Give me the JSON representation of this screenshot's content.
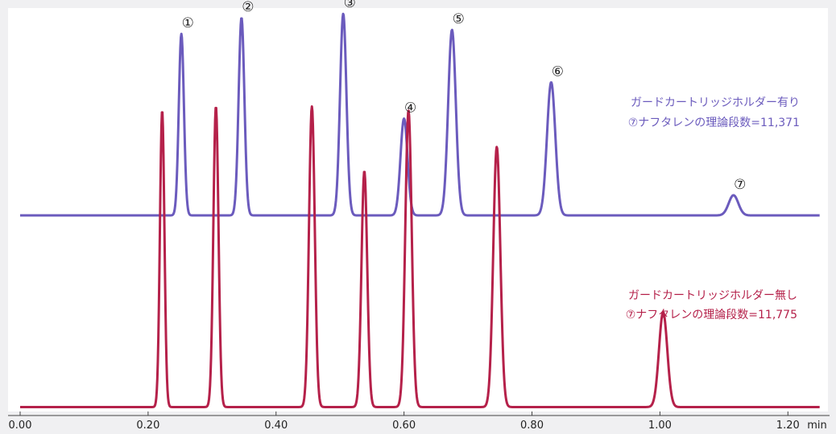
{
  "chart_data": {
    "type": "line",
    "title": "",
    "xlabel": "",
    "ylabel": "",
    "xlim": [
      0.0,
      1.25
    ],
    "ylim": [
      0,
      100
    ],
    "x_ticks": [
      0.0,
      0.2,
      0.4,
      0.6,
      0.8,
      1.0,
      1.2
    ],
    "x_tick_labels": [
      "0.00",
      "0.20",
      "0.40",
      "0.60",
      "0.80",
      "1.00",
      "1.20"
    ],
    "x_unit_label": "min",
    "grid": false,
    "legend": "none",
    "series": [
      {
        "color": "#6b5bbd",
        "baseline": 49,
        "peaks": [
          {
            "label": "①",
            "t": 0.252,
            "height": 94,
            "width": 0.004
          },
          {
            "label": "②",
            "t": 0.346,
            "height": 98,
            "width": 0.0045
          },
          {
            "label": "③",
            "t": 0.505,
            "height": 99,
            "width": 0.005
          },
          {
            "label": "④",
            "t": 0.6,
            "height": 73,
            "width": 0.0055
          },
          {
            "label": "⑤",
            "t": 0.675,
            "height": 95,
            "width": 0.006
          },
          {
            "label": "⑥",
            "t": 0.83,
            "height": 82,
            "width": 0.0065
          },
          {
            "label": "⑦",
            "t": 1.115,
            "height": 54,
            "width": 0.0075
          }
        ]
      },
      {
        "color": "#b5214a",
        "baseline": 1.5,
        "peaks": [
          {
            "label": "",
            "t": 0.222,
            "height": 75,
            "width": 0.0035
          },
          {
            "label": "",
            "t": 0.306,
            "height": 76,
            "width": 0.004
          },
          {
            "label": "",
            "t": 0.456,
            "height": 76,
            "width": 0.0045
          },
          {
            "label": "",
            "t": 0.538,
            "height": 60,
            "width": 0.0045
          },
          {
            "label": "",
            "t": 0.607,
            "height": 75,
            "width": 0.005
          },
          {
            "label": "",
            "t": 0.745,
            "height": 66,
            "width": 0.0055
          },
          {
            "label": "",
            "t": 1.005,
            "height": 25,
            "width": 0.0065
          }
        ]
      }
    ],
    "annotations": [
      {
        "line1": "ガードカートリッジホルダー有り",
        "line2": "⑦ナフタレンの理論段数=11,371",
        "color": "#6b5bbd"
      },
      {
        "line1": "ガードカートリッジホルダー無し",
        "line2": "⑦ナフタレンの理論段数=11,775",
        "color": "#b5214a"
      }
    ]
  }
}
